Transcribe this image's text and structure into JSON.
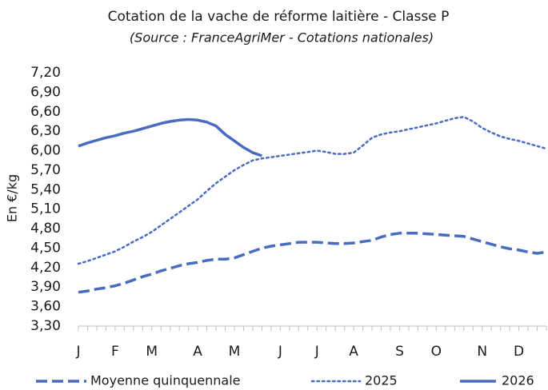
{
  "chart_data": {
    "type": "line",
    "title": "Cotation de la vache de réforme laitière - Classe P",
    "subtitle": "(Source : FranceAgriMer -  Cotations nationales)",
    "y_label": "En €/kg",
    "categories": [
      "J",
      null,
      null,
      null,
      "F",
      null,
      null,
      null,
      "M",
      null,
      null,
      null,
      null,
      "A",
      null,
      null,
      null,
      "M",
      null,
      null,
      null,
      null,
      "J",
      null,
      null,
      null,
      "J",
      null,
      null,
      null,
      "A",
      null,
      null,
      null,
      null,
      "S",
      null,
      null,
      null,
      "O",
      null,
      null,
      null,
      null,
      "N",
      null,
      null,
      null,
      "D",
      null,
      null,
      null
    ],
    "ylim": [
      3.3,
      7.2
    ],
    "yticks": [
      {
        "value": 3.3,
        "label": "3,30"
      },
      {
        "value": 3.6,
        "label": "3,60"
      },
      {
        "value": 3.9,
        "label": "3,90"
      },
      {
        "value": 4.2,
        "label": "4,20"
      },
      {
        "value": 4.5,
        "label": "4,50"
      },
      {
        "value": 4.8,
        "label": "4,80"
      },
      {
        "value": 5.1,
        "label": "5,10"
      },
      {
        "value": 5.4,
        "label": "5,40"
      },
      {
        "value": 5.7,
        "label": "5,70"
      },
      {
        "value": 6.0,
        "label": "6,00"
      },
      {
        "value": 6.3,
        "label": "6,30"
      },
      {
        "value": 6.6,
        "label": "6,60"
      },
      {
        "value": 6.9,
        "label": "6,90"
      },
      {
        "value": 7.2,
        "label": "7,20"
      }
    ],
    "grid": false,
    "legend": "bottom",
    "series": [
      {
        "name": "Moyenne quinquennale",
        "color": "#4a6cc0",
        "style": "dashed",
        "values": [
          3.82,
          3.84,
          3.87,
          3.89,
          3.92,
          3.96,
          4.01,
          4.06,
          4.1,
          4.15,
          4.19,
          4.23,
          4.26,
          4.28,
          4.31,
          4.33,
          4.33,
          4.35,
          4.4,
          4.45,
          4.5,
          4.53,
          4.55,
          4.57,
          4.59,
          4.59,
          4.59,
          4.58,
          4.57,
          4.57,
          4.58,
          4.6,
          4.62,
          4.67,
          4.71,
          4.73,
          4.73,
          4.73,
          4.72,
          4.71,
          4.7,
          4.69,
          4.68,
          4.64,
          4.6,
          4.56,
          4.52,
          4.49,
          4.47,
          4.44,
          4.42,
          4.44
        ]
      },
      {
        "name": "2025",
        "color": "#4a6cc0",
        "style": "dotted",
        "values": [
          4.26,
          4.3,
          4.35,
          4.4,
          4.45,
          4.52,
          4.6,
          4.67,
          4.75,
          4.85,
          4.95,
          5.05,
          5.15,
          5.25,
          5.38,
          5.5,
          5.6,
          5.7,
          5.78,
          5.85,
          5.88,
          5.9,
          5.92,
          5.94,
          5.96,
          5.98,
          6.0,
          5.98,
          5.95,
          5.95,
          5.97,
          6.08,
          6.2,
          6.25,
          6.28,
          6.3,
          6.33,
          6.36,
          6.39,
          6.42,
          6.46,
          6.5,
          6.52,
          6.45,
          6.35,
          6.28,
          6.22,
          6.18,
          6.15,
          6.11,
          6.07,
          6.03
        ]
      },
      {
        "name": "2026",
        "color": "#4a6cc0",
        "style": "solid",
        "values": [
          6.07,
          6.12,
          6.16,
          6.2,
          6.23,
          6.27,
          6.3,
          6.34,
          6.38,
          6.42,
          6.45,
          6.47,
          6.48,
          6.47,
          6.44,
          6.38,
          6.25,
          6.15,
          6.05,
          5.97,
          5.92,
          null,
          null,
          null,
          null,
          null,
          null,
          null,
          null,
          null,
          null,
          null,
          null,
          null,
          null,
          null,
          null,
          null,
          null,
          null,
          null,
          null,
          null,
          null,
          null,
          null,
          null,
          null,
          null,
          null,
          null,
          null
        ]
      }
    ]
  }
}
